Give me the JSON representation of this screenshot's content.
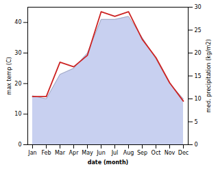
{
  "chart_data": {
    "type": "line",
    "categories": [
      "Jan",
      "Feb",
      "Mar",
      "Apr",
      "May",
      "Jun",
      "Jul",
      "Aug",
      "Sep",
      "Oct",
      "Nov",
      "Dec"
    ],
    "xlabel": "date (month)",
    "ylabel": "max temp (C)",
    "y2label": "med. precipitation (kg/m2)",
    "ylim": [
      0,
      45
    ],
    "yticks": [
      0,
      10,
      20,
      30,
      40
    ],
    "y2lim": [
      0,
      30
    ],
    "y2ticks": [
      0,
      5,
      10,
      15,
      20,
      25,
      30
    ],
    "grid": false,
    "series": [
      {
        "name": "max temp (C)",
        "type": "area",
        "color": "#c8d0f0",
        "values": [
          16,
          15,
          23,
          25,
          30,
          41,
          41,
          42,
          35,
          28,
          20,
          15
        ]
      },
      {
        "name": "med. precipitation (kg/m2)",
        "type": "line",
        "axis": "y2",
        "color": "#cc2222",
        "values": [
          10.5,
          10.5,
          18,
          17,
          19.5,
          29,
          28,
          29,
          23,
          19,
          13.5,
          9.5
        ]
      }
    ]
  }
}
